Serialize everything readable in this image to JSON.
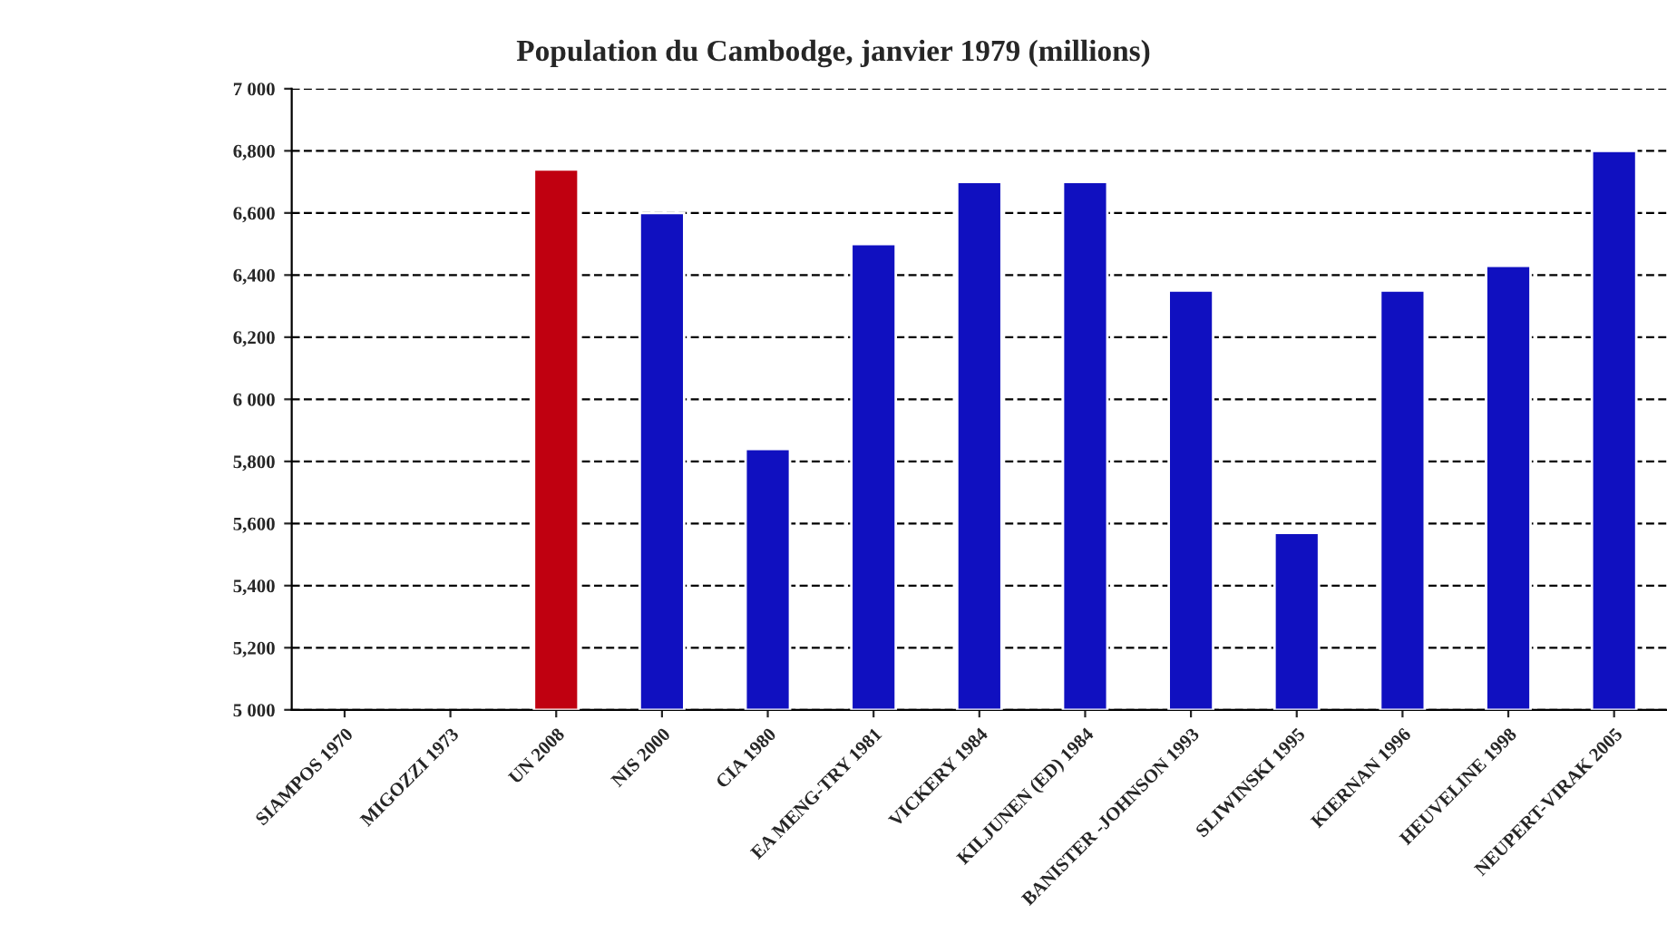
{
  "chart_data": {
    "type": "bar",
    "title": "Population du Cambodge, janvier 1979 (millions)",
    "categories": [
      "SIAMPOS 1970",
      "MIGOZZI 1973",
      "UN 2008",
      "NIS 2000",
      "CIA 1980",
      "EA MENG-TRY 1981",
      "VICKERY 1984",
      "KILJUNEN (ED) 1984",
      "BANISTER -JOHNSON 1993",
      "SLIWINSKI 1995",
      "KIERNAN 1996",
      "HEUVELINE 1998",
      "NEUPERT-VIRAK 2005"
    ],
    "values": [
      null,
      null,
      6740,
      6600,
      5840,
      6500,
      6700,
      6700,
      6350,
      5570,
      6350,
      6430,
      6800
    ],
    "colors": [
      "#1010c0",
      "#1010c0",
      "#c00010",
      "#1010c0",
      "#1010c0",
      "#1010c0",
      "#1010c0",
      "#1010c0",
      "#1010c0",
      "#1010c0",
      "#1010c0",
      "#1010c0",
      "#1010c0"
    ],
    "ylim": [
      5000,
      7000
    ],
    "yticks": [
      {
        "value": 5000,
        "label": "5 000"
      },
      {
        "value": 5200,
        "label": "5,200"
      },
      {
        "value": 5400,
        "label": "5,400"
      },
      {
        "value": 5600,
        "label": "5,600"
      },
      {
        "value": 5800,
        "label": "5,800"
      },
      {
        "value": 6000,
        "label": "6 000"
      },
      {
        "value": 6200,
        "label": "6,200"
      },
      {
        "value": 6400,
        "label": "6,400"
      },
      {
        "value": 6600,
        "label": "6,600"
      },
      {
        "value": 6800,
        "label": "6,800"
      },
      {
        "value": 7000,
        "label": "7 000"
      }
    ],
    "grid": "y",
    "legend": false
  }
}
